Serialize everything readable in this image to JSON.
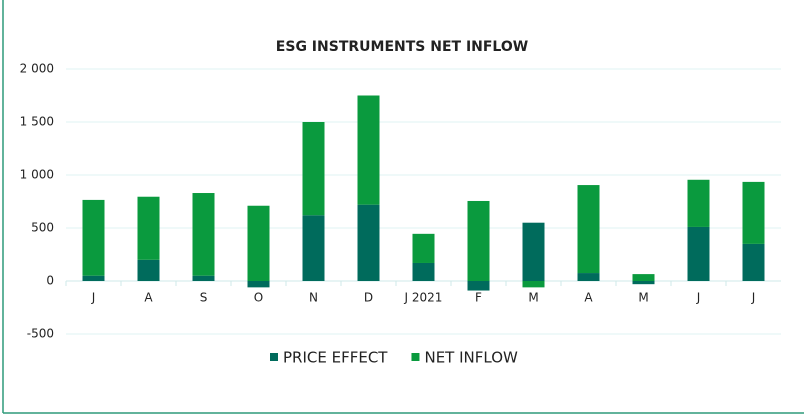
{
  "chart_data": {
    "type": "stacked_bar",
    "title": "ESG INSTRUMENTS NET INFLOW",
    "categories": [
      "J",
      "A",
      "S",
      "O",
      "N",
      "D",
      "J 2021",
      "F",
      "M",
      "A",
      "M",
      "J",
      "J"
    ],
    "series": [
      {
        "name": "PRICE EFFECT",
        "color": "#006b5c",
        "values": [
          50,
          200,
          50,
          -60,
          620,
          720,
          170,
          -90,
          550,
          75,
          -30,
          510,
          350
        ]
      },
      {
        "name": "NET INFLOW",
        "color": "#0a9a3e",
        "values": [
          715,
          595,
          780,
          710,
          880,
          1030,
          275,
          755,
          -60,
          830,
          65,
          445,
          585
        ]
      }
    ],
    "ylim": [
      -500,
      2000
    ],
    "yticks": [
      {
        "value": -500,
        "label": "-500"
      },
      0,
      500,
      {
        "value": 1000,
        "label": "1 000"
      },
      {
        "value": 1500,
        "label": "1 500"
      },
      {
        "value": 2000,
        "label": "2 000"
      }
    ],
    "grid": true,
    "legend": "bottom"
  }
}
